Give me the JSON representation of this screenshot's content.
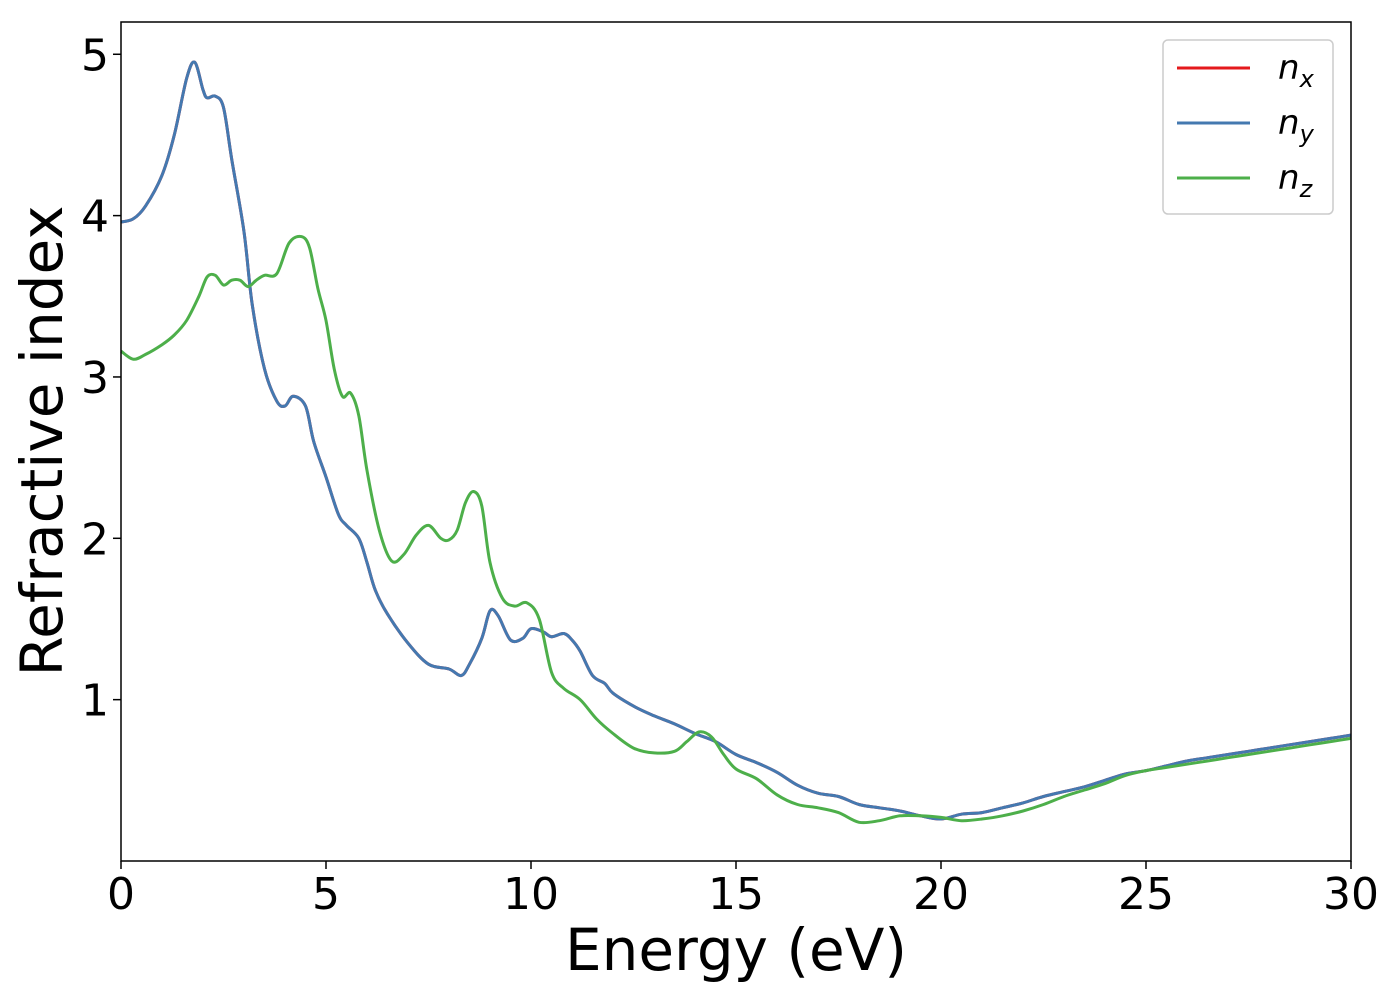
{
  "chart_data": {
    "type": "line",
    "title": "",
    "xlabel": "Energy (eV)",
    "ylabel": "Refractive index",
    "xlim": [
      0,
      30
    ],
    "ylim": [
      0,
      5.2
    ],
    "xticks": [
      0,
      5,
      10,
      15,
      20,
      25,
      30
    ],
    "xtick_labels": [
      "0",
      "5",
      "10",
      "15",
      "20",
      "25",
      "30"
    ],
    "yticks": [
      1,
      2,
      3,
      4,
      5
    ],
    "ytick_labels": [
      "1",
      "2",
      "3",
      "4",
      "5"
    ],
    "grid": false,
    "legend_position": "top-right",
    "series": [
      {
        "name": "n",
        "subscript": "x",
        "color": "#e41a1c",
        "x": [
          0,
          0.3,
          0.6,
          1.0,
          1.3,
          1.6,
          1.8,
          2.0,
          2.1,
          2.3,
          2.5,
          2.7,
          3.0,
          3.2,
          3.5,
          3.8,
          4.0,
          4.2,
          4.5,
          4.7,
          5.0,
          5.3,
          5.5,
          5.8,
          6.0,
          6.2,
          6.5,
          7.0,
          7.5,
          8.0,
          8.3,
          8.5,
          8.8,
          9.0,
          9.2,
          9.5,
          9.8,
          10.0,
          10.3,
          10.5,
          10.8,
          11.0,
          11.2,
          11.5,
          11.8,
          12.0,
          12.5,
          13.0,
          13.5,
          14.0,
          14.5,
          15.0,
          15.5,
          16.0,
          16.5,
          17.0,
          17.5,
          18.0,
          18.5,
          19.0,
          19.5,
          20.0,
          20.5,
          21.0,
          21.5,
          22.0,
          22.5,
          23.0,
          23.5,
          24.0,
          24.5,
          25.0,
          25.5,
          26.0,
          26.5,
          27.0,
          27.5,
          28.0,
          28.5,
          29.0,
          29.5,
          30.0
        ],
        "values": [
          3.96,
          3.98,
          4.06,
          4.25,
          4.5,
          4.85,
          4.95,
          4.78,
          4.73,
          4.74,
          4.67,
          4.35,
          3.9,
          3.45,
          3.05,
          2.85,
          2.82,
          2.88,
          2.82,
          2.6,
          2.38,
          2.15,
          2.08,
          2.0,
          1.85,
          1.68,
          1.53,
          1.35,
          1.22,
          1.19,
          1.15,
          1.22,
          1.38,
          1.55,
          1.52,
          1.37,
          1.38,
          1.44,
          1.42,
          1.39,
          1.41,
          1.37,
          1.3,
          1.15,
          1.1,
          1.04,
          0.96,
          0.9,
          0.85,
          0.79,
          0.74,
          0.66,
          0.61,
          0.55,
          0.47,
          0.42,
          0.4,
          0.35,
          0.33,
          0.31,
          0.28,
          0.26,
          0.29,
          0.3,
          0.33,
          0.36,
          0.4,
          0.43,
          0.46,
          0.5,
          0.54,
          0.56,
          0.59,
          0.62,
          0.64,
          0.66,
          0.68,
          0.7,
          0.72,
          0.74,
          0.76,
          0.78
        ]
      },
      {
        "name": "n",
        "subscript": "y",
        "color": "#4479b0",
        "x": [
          0,
          0.3,
          0.6,
          1.0,
          1.3,
          1.6,
          1.8,
          2.0,
          2.1,
          2.3,
          2.5,
          2.7,
          3.0,
          3.2,
          3.5,
          3.8,
          4.0,
          4.2,
          4.5,
          4.7,
          5.0,
          5.3,
          5.5,
          5.8,
          6.0,
          6.2,
          6.5,
          7.0,
          7.5,
          8.0,
          8.3,
          8.5,
          8.8,
          9.0,
          9.2,
          9.5,
          9.8,
          10.0,
          10.3,
          10.5,
          10.8,
          11.0,
          11.2,
          11.5,
          11.8,
          12.0,
          12.5,
          13.0,
          13.5,
          14.0,
          14.5,
          15.0,
          15.5,
          16.0,
          16.5,
          17.0,
          17.5,
          18.0,
          18.5,
          19.0,
          19.5,
          20.0,
          20.5,
          21.0,
          21.5,
          22.0,
          22.5,
          23.0,
          23.5,
          24.0,
          24.5,
          25.0,
          25.5,
          26.0,
          26.5,
          27.0,
          27.5,
          28.0,
          28.5,
          29.0,
          29.5,
          30.0
        ],
        "values": [
          3.96,
          3.98,
          4.06,
          4.25,
          4.5,
          4.85,
          4.95,
          4.78,
          4.73,
          4.74,
          4.67,
          4.35,
          3.9,
          3.45,
          3.05,
          2.85,
          2.82,
          2.88,
          2.82,
          2.6,
          2.38,
          2.15,
          2.08,
          2.0,
          1.85,
          1.68,
          1.53,
          1.35,
          1.22,
          1.19,
          1.15,
          1.22,
          1.38,
          1.55,
          1.52,
          1.37,
          1.38,
          1.44,
          1.42,
          1.39,
          1.41,
          1.37,
          1.3,
          1.15,
          1.1,
          1.04,
          0.96,
          0.9,
          0.85,
          0.79,
          0.74,
          0.66,
          0.61,
          0.55,
          0.47,
          0.42,
          0.4,
          0.35,
          0.33,
          0.31,
          0.28,
          0.26,
          0.29,
          0.3,
          0.33,
          0.36,
          0.4,
          0.43,
          0.46,
          0.5,
          0.54,
          0.56,
          0.59,
          0.62,
          0.64,
          0.66,
          0.68,
          0.7,
          0.72,
          0.74,
          0.76,
          0.78
        ]
      },
      {
        "name": "n",
        "subscript": "z",
        "color": "#4daf4a",
        "x": [
          0,
          0.3,
          0.6,
          1.0,
          1.3,
          1.6,
          1.9,
          2.1,
          2.3,
          2.5,
          2.7,
          2.9,
          3.1,
          3.3,
          3.5,
          3.8,
          4.1,
          4.4,
          4.6,
          4.8,
          5.0,
          5.2,
          5.4,
          5.6,
          5.8,
          6.0,
          6.3,
          6.6,
          6.9,
          7.2,
          7.5,
          7.8,
          8.0,
          8.2,
          8.4,
          8.6,
          8.8,
          9.0,
          9.3,
          9.6,
          9.9,
          10.2,
          10.5,
          10.8,
          11.2,
          11.6,
          12.0,
          12.5,
          13.0,
          13.5,
          13.8,
          14.1,
          14.4,
          14.7,
          15.0,
          15.5,
          16.0,
          16.5,
          17.0,
          17.5,
          18.0,
          18.5,
          19.0,
          19.5,
          20.0,
          20.5,
          21.0,
          21.5,
          22.0,
          22.5,
          23.0,
          23.5,
          24.0,
          24.5,
          25.0,
          25.5,
          26.0,
          26.5,
          27.0,
          27.5,
          28.0,
          28.5,
          29.0,
          29.5,
          30.0
        ],
        "values": [
          3.16,
          3.11,
          3.14,
          3.2,
          3.26,
          3.35,
          3.5,
          3.62,
          3.63,
          3.57,
          3.6,
          3.6,
          3.56,
          3.6,
          3.63,
          3.64,
          3.83,
          3.87,
          3.8,
          3.55,
          3.35,
          3.05,
          2.88,
          2.9,
          2.76,
          2.42,
          2.05,
          1.86,
          1.9,
          2.02,
          2.08,
          2.0,
          1.99,
          2.05,
          2.22,
          2.29,
          2.2,
          1.85,
          1.63,
          1.58,
          1.6,
          1.5,
          1.17,
          1.07,
          1.0,
          0.88,
          0.79,
          0.7,
          0.67,
          0.68,
          0.74,
          0.8,
          0.77,
          0.66,
          0.57,
          0.51,
          0.41,
          0.35,
          0.33,
          0.3,
          0.24,
          0.25,
          0.28,
          0.28,
          0.27,
          0.25,
          0.26,
          0.28,
          0.31,
          0.35,
          0.4,
          0.44,
          0.48,
          0.53,
          0.56,
          0.58,
          0.6,
          0.62,
          0.64,
          0.66,
          0.68,
          0.7,
          0.72,
          0.74,
          0.76
        ]
      }
    ]
  }
}
